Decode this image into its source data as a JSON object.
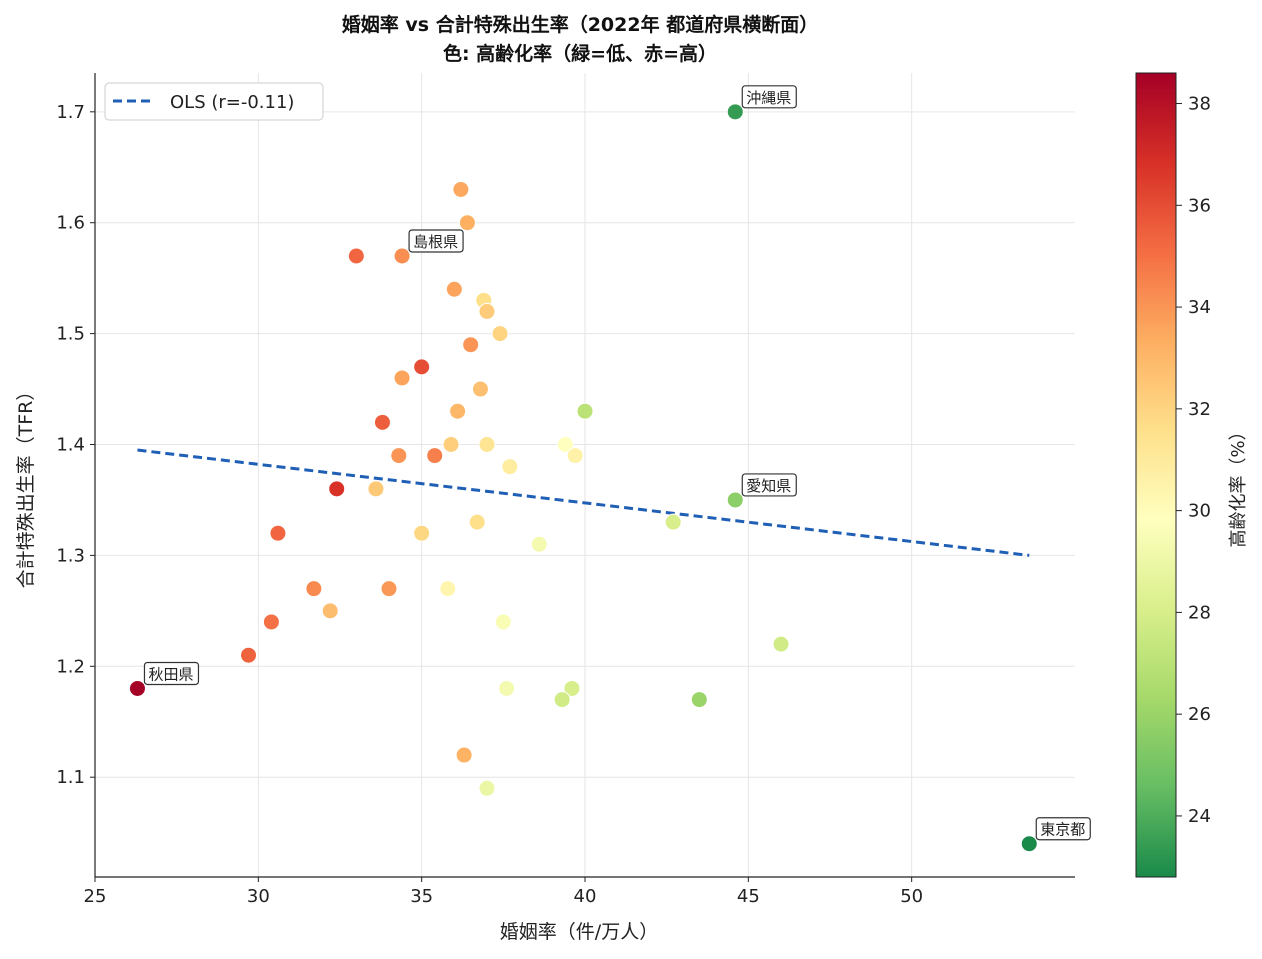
{
  "chart_data": {
    "type": "scatter",
    "title": "婚姻率 vs 合計特殊出生率（2022年 都道府県横断面）",
    "subtitle": "色: 高齢化率（緑=低、赤=高）",
    "xlabel": "婚姻率（件/万人）",
    "ylabel": "合計特殊出生率（TFR）",
    "xlim": [
      25,
      55
    ],
    "ylim": [
      1.01,
      1.735
    ],
    "xticks": [
      25,
      30,
      35,
      40,
      45,
      50
    ],
    "yticks": [
      1.1,
      1.2,
      1.3,
      1.4,
      1.5,
      1.6,
      1.7
    ],
    "grid": true,
    "legend": {
      "position": "top-left",
      "entries": [
        {
          "label": "OLS (r=-0.11)",
          "style": "dashed",
          "color": "#1f5fb5"
        }
      ]
    },
    "trendline": {
      "x": [
        26.3,
        53.6
      ],
      "y": [
        1.395,
        1.3
      ]
    },
    "colorbar": {
      "label": "高齢化率（%）",
      "range": [
        22.8,
        38.6
      ],
      "ticks": [
        24,
        26,
        28,
        30,
        32,
        34,
        36,
        38
      ],
      "colormap": "RdYlGn_r",
      "stops": [
        "#1a8a4a",
        "#66bd63",
        "#a6d96a",
        "#d9ef8b",
        "#ffffbf",
        "#fee08b",
        "#fdae61",
        "#f46d43",
        "#d73027",
        "#a50026"
      ]
    },
    "points": [
      {
        "x": 44.6,
        "y": 1.7,
        "c": 23.4,
        "label": "沖縄県"
      },
      {
        "x": 36.2,
        "y": 1.63,
        "c": 33.5
      },
      {
        "x": 36.4,
        "y": 1.6,
        "c": 33.3
      },
      {
        "x": 33.0,
        "y": 1.57,
        "c": 35.3
      },
      {
        "x": 34.4,
        "y": 1.57,
        "c": 34.2,
        "label": "島根県"
      },
      {
        "x": 36.0,
        "y": 1.54,
        "c": 33.6
      },
      {
        "x": 36.9,
        "y": 1.53,
        "c": 31.6
      },
      {
        "x": 37.0,
        "y": 1.52,
        "c": 32.3
      },
      {
        "x": 37.4,
        "y": 1.5,
        "c": 32.0
      },
      {
        "x": 36.5,
        "y": 1.49,
        "c": 34.0
      },
      {
        "x": 35.0,
        "y": 1.47,
        "c": 36.0
      },
      {
        "x": 34.4,
        "y": 1.46,
        "c": 33.6
      },
      {
        "x": 36.8,
        "y": 1.45,
        "c": 32.7
      },
      {
        "x": 40.0,
        "y": 1.43,
        "c": 27.0
      },
      {
        "x": 33.8,
        "y": 1.42,
        "c": 35.5
      },
      {
        "x": 36.1,
        "y": 1.43,
        "c": 33.0
      },
      {
        "x": 35.9,
        "y": 1.4,
        "c": 32.2
      },
      {
        "x": 37.0,
        "y": 1.4,
        "c": 31.3
      },
      {
        "x": 39.4,
        "y": 1.4,
        "c": 29.8
      },
      {
        "x": 39.7,
        "y": 1.39,
        "c": 30.6
      },
      {
        "x": 34.3,
        "y": 1.39,
        "c": 34.0
      },
      {
        "x": 35.4,
        "y": 1.39,
        "c": 34.6
      },
      {
        "x": 37.7,
        "y": 1.38,
        "c": 30.9
      },
      {
        "x": 32.4,
        "y": 1.36,
        "c": 36.8
      },
      {
        "x": 33.6,
        "y": 1.36,
        "c": 32.4
      },
      {
        "x": 44.6,
        "y": 1.35,
        "c": 25.6,
        "label": "愛知県"
      },
      {
        "x": 36.7,
        "y": 1.33,
        "c": 31.6
      },
      {
        "x": 42.7,
        "y": 1.33,
        "c": 28.0
      },
      {
        "x": 30.6,
        "y": 1.32,
        "c": 35.3
      },
      {
        "x": 35.0,
        "y": 1.32,
        "c": 31.9
      },
      {
        "x": 38.6,
        "y": 1.31,
        "c": 29.3
      },
      {
        "x": 31.7,
        "y": 1.27,
        "c": 34.3
      },
      {
        "x": 34.0,
        "y": 1.27,
        "c": 33.9
      },
      {
        "x": 35.8,
        "y": 1.27,
        "c": 30.4
      },
      {
        "x": 32.2,
        "y": 1.25,
        "c": 32.8
      },
      {
        "x": 30.4,
        "y": 1.24,
        "c": 35.0
      },
      {
        "x": 37.5,
        "y": 1.24,
        "c": 29.5
      },
      {
        "x": 46.0,
        "y": 1.22,
        "c": 27.8
      },
      {
        "x": 29.7,
        "y": 1.21,
        "c": 35.4
      },
      {
        "x": 26.3,
        "y": 1.18,
        "c": 38.6,
        "label": "秋田県"
      },
      {
        "x": 37.6,
        "y": 1.18,
        "c": 29.3
      },
      {
        "x": 39.6,
        "y": 1.18,
        "c": 28.0
      },
      {
        "x": 39.3,
        "y": 1.17,
        "c": 27.8
      },
      {
        "x": 43.5,
        "y": 1.17,
        "c": 26.0
      },
      {
        "x": 36.3,
        "y": 1.12,
        "c": 33.2
      },
      {
        "x": 37.0,
        "y": 1.09,
        "c": 28.9
      },
      {
        "x": 53.6,
        "y": 1.04,
        "c": 22.8,
        "label": "東京都"
      }
    ]
  }
}
